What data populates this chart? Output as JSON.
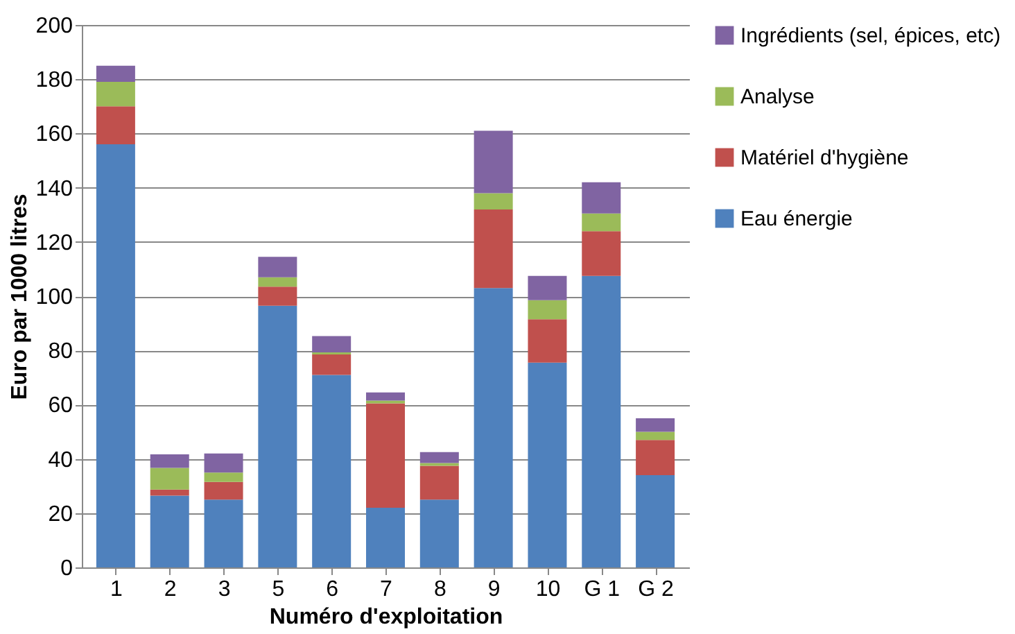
{
  "chart_data": {
    "type": "bar",
    "stacked": true,
    "xlabel": "Numéro d'exploitation",
    "ylabel": "Euro par 1000 litres",
    "categories": [
      "1",
      "2",
      "3",
      "5",
      "6",
      "7",
      "8",
      "9",
      "10",
      "G 1",
      "G 2"
    ],
    "series": [
      {
        "name": "Eau énergie",
        "color": "#4f81bd",
        "values": [
          156,
          26.5,
          25,
          96.5,
          71,
          22,
          25,
          103,
          75.5,
          107.5,
          34
        ]
      },
      {
        "name": "Matériel d'hygiène",
        "color": "#c0504d",
        "values": [
          14,
          2.2,
          6.5,
          7,
          7.5,
          38.5,
          12.5,
          29,
          16,
          16.5,
          13
        ]
      },
      {
        "name": "Analyse",
        "color": "#9bbb59",
        "values": [
          9,
          8,
          3.5,
          3.5,
          0.8,
          1,
          1,
          6,
          7,
          6.5,
          3
        ]
      },
      {
        "name": "Ingrédients (sel, épices, etc)",
        "color": "#8064a2",
        "values": [
          6,
          5,
          7,
          7.5,
          6,
          3,
          4,
          23,
          9,
          11.5,
          5
        ]
      }
    ],
    "ylim": [
      0,
      200
    ],
    "yticks": [
      0,
      20,
      40,
      60,
      80,
      100,
      120,
      140,
      160,
      180,
      200
    ],
    "grid": "y",
    "legend": "right"
  }
}
